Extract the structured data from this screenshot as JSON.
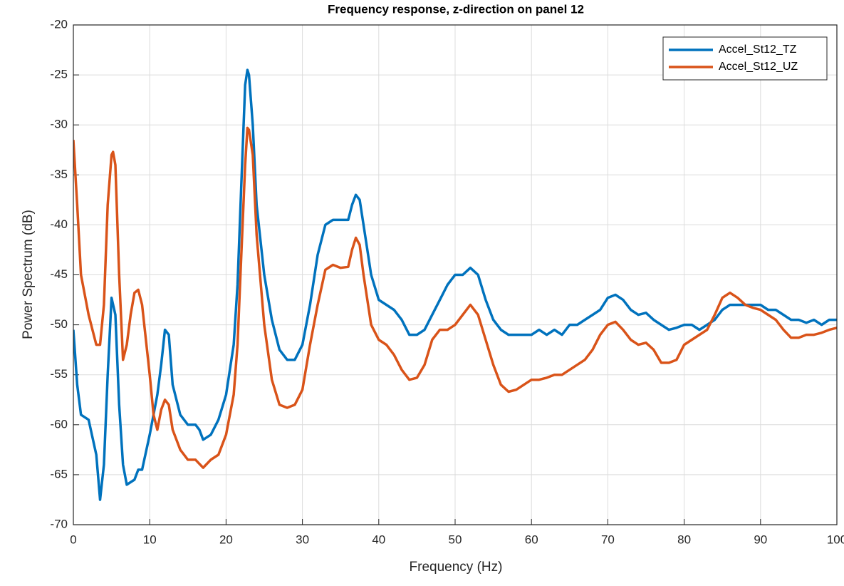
{
  "chart_data": {
    "type": "line",
    "title": "Frequency response, z-direction on panel 12",
    "x_label": "Frequency (Hz)",
    "y_label": "Power Spectrum (dB)",
    "xlim": [
      0,
      100
    ],
    "xticks": [
      0,
      10,
      20,
      30,
      40,
      50,
      60,
      70,
      80,
      90,
      100
    ],
    "ylim": [
      -70,
      -20
    ],
    "yticks": [
      -70,
      -65,
      -60,
      -55,
      -50,
      -45,
      -40,
      -35,
      -30,
      -25,
      -20
    ],
    "grid": true,
    "legend": "northeast",
    "series": [
      {
        "name": "Accel_St12_TZ",
        "color": "#0072bd",
        "x": [
          0,
          0.5,
          1,
          2,
          3,
          3.5,
          4,
          4.5,
          5,
          5.5,
          6,
          6.5,
          7,
          8,
          8.5,
          9,
          10,
          11,
          11.5,
          12,
          12.5,
          13,
          14,
          15,
          16,
          16.5,
          17,
          18,
          19,
          20,
          21,
          21.5,
          22,
          22.5,
          22.8,
          23,
          23.5,
          24,
          25,
          26,
          27,
          28,
          29,
          30,
          31,
          32,
          33,
          34,
          35,
          36,
          36.5,
          37,
          37.5,
          38,
          39,
          40,
          41,
          42,
          43,
          44,
          45,
          46,
          47,
          48,
          49,
          50,
          51,
          52,
          53,
          54,
          55,
          56,
          57,
          58,
          59,
          60,
          61,
          62,
          63,
          64,
          65,
          66,
          67,
          68,
          69,
          70,
          71,
          72,
          73,
          74,
          75,
          76,
          77,
          78,
          79,
          80,
          81,
          82,
          83,
          84,
          85,
          86,
          87,
          88,
          89,
          90,
          91,
          92,
          93,
          94,
          95,
          96,
          97,
          98,
          99,
          100
        ],
        "values": [
          -50.5,
          -56,
          -59,
          -59.5,
          -63,
          -67.5,
          -64,
          -55,
          -47.3,
          -49,
          -58,
          -64,
          -66,
          -65.5,
          -64.5,
          -64.5,
          -61,
          -57,
          -54,
          -50.5,
          -51,
          -56,
          -59,
          -60,
          -60,
          -60.5,
          -61.5,
          -61,
          -59.5,
          -57,
          -52,
          -46,
          -36,
          -26,
          -24.5,
          -25,
          -30,
          -38,
          -45,
          -49.5,
          -52.5,
          -53.5,
          -53.5,
          -52,
          -48,
          -43,
          -40,
          -39.5,
          -39.5,
          -39.5,
          -38,
          -37,
          -37.5,
          -40,
          -45,
          -47.5,
          -48,
          -48.5,
          -49.5,
          -51,
          -51,
          -50.5,
          -49,
          -47.5,
          -46,
          -45,
          -45,
          -44.3,
          -45,
          -47.5,
          -49.5,
          -50.5,
          -51,
          -51,
          -51,
          -51,
          -50.5,
          -51,
          -50.5,
          -51,
          -50,
          -50,
          -49.5,
          -49,
          -48.5,
          -47.3,
          -47,
          -47.5,
          -48.5,
          -49,
          -48.8,
          -49.5,
          -50,
          -50.5,
          -50.3,
          -50,
          -50,
          -50.5,
          -50,
          -49.5,
          -48.5,
          -48,
          -48,
          -48,
          -48,
          -48,
          -48.5,
          -48.5,
          -49,
          -49.5,
          -49.5,
          -49.8,
          -49.5,
          -50,
          -49.5,
          -49.5
        ]
      },
      {
        "name": "Accel_St12_UZ",
        "color": "#d95319",
        "x": [
          0,
          0.5,
          1,
          2,
          3,
          3.5,
          4,
          4.5,
          5,
          5.2,
          5.5,
          6,
          6.5,
          7,
          7.5,
          8,
          8.5,
          9,
          10,
          10.5,
          11,
          11.5,
          12,
          12.5,
          13,
          14,
          15,
          16,
          17,
          18,
          19,
          20,
          21,
          21.5,
          22,
          22.5,
          22.8,
          23,
          23.5,
          24,
          25,
          26,
          27,
          28,
          29,
          30,
          31,
          32,
          33,
          34,
          35,
          36,
          36.5,
          37,
          37.5,
          38,
          39,
          40,
          41,
          42,
          43,
          44,
          45,
          46,
          47,
          48,
          49,
          50,
          51,
          52,
          53,
          54,
          55,
          56,
          57,
          58,
          59,
          60,
          61,
          62,
          63,
          64,
          65,
          66,
          67,
          68,
          69,
          70,
          71,
          72,
          73,
          74,
          75,
          76,
          77,
          78,
          79,
          80,
          81,
          82,
          83,
          84,
          85,
          86,
          87,
          88,
          89,
          90,
          91,
          92,
          93,
          94,
          95,
          96,
          97,
          98,
          99,
          100
        ],
        "values": [
          -31.5,
          -38,
          -45,
          -49,
          -52,
          -52,
          -48,
          -38,
          -33,
          -32.7,
          -34,
          -45,
          -53.5,
          -52,
          -49,
          -46.8,
          -46.5,
          -48,
          -55,
          -59,
          -60.5,
          -58.5,
          -57.5,
          -58,
          -60.5,
          -62.5,
          -63.5,
          -63.5,
          -64.3,
          -63.5,
          -63,
          -61,
          -57,
          -52,
          -43,
          -34,
          -30.3,
          -30.5,
          -33,
          -41,
          -50,
          -55.5,
          -58,
          -58.3,
          -58,
          -56.5,
          -52,
          -48,
          -44.5,
          -44,
          -44.3,
          -44.2,
          -42.5,
          -41.3,
          -42,
          -45,
          -50,
          -51.5,
          -52,
          -53,
          -54.5,
          -55.5,
          -55.3,
          -54,
          -51.5,
          -50.5,
          -50.5,
          -50,
          -49,
          -48,
          -49,
          -51.5,
          -54,
          -56,
          -56.7,
          -56.5,
          -56,
          -55.5,
          -55.5,
          -55.3,
          -55,
          -55,
          -54.5,
          -54,
          -53.5,
          -52.5,
          -51,
          -50,
          -49.7,
          -50.5,
          -51.5,
          -52,
          -51.8,
          -52.5,
          -53.8,
          -53.8,
          -53.5,
          -52,
          -51.5,
          -51,
          -50.5,
          -49,
          -47.3,
          -46.8,
          -47.3,
          -48,
          -48.3,
          -48.5,
          -49,
          -49.5,
          -50.5,
          -51.3,
          -51.3,
          -51,
          -51,
          -50.8,
          -50.5,
          -50.3
        ]
      }
    ]
  }
}
